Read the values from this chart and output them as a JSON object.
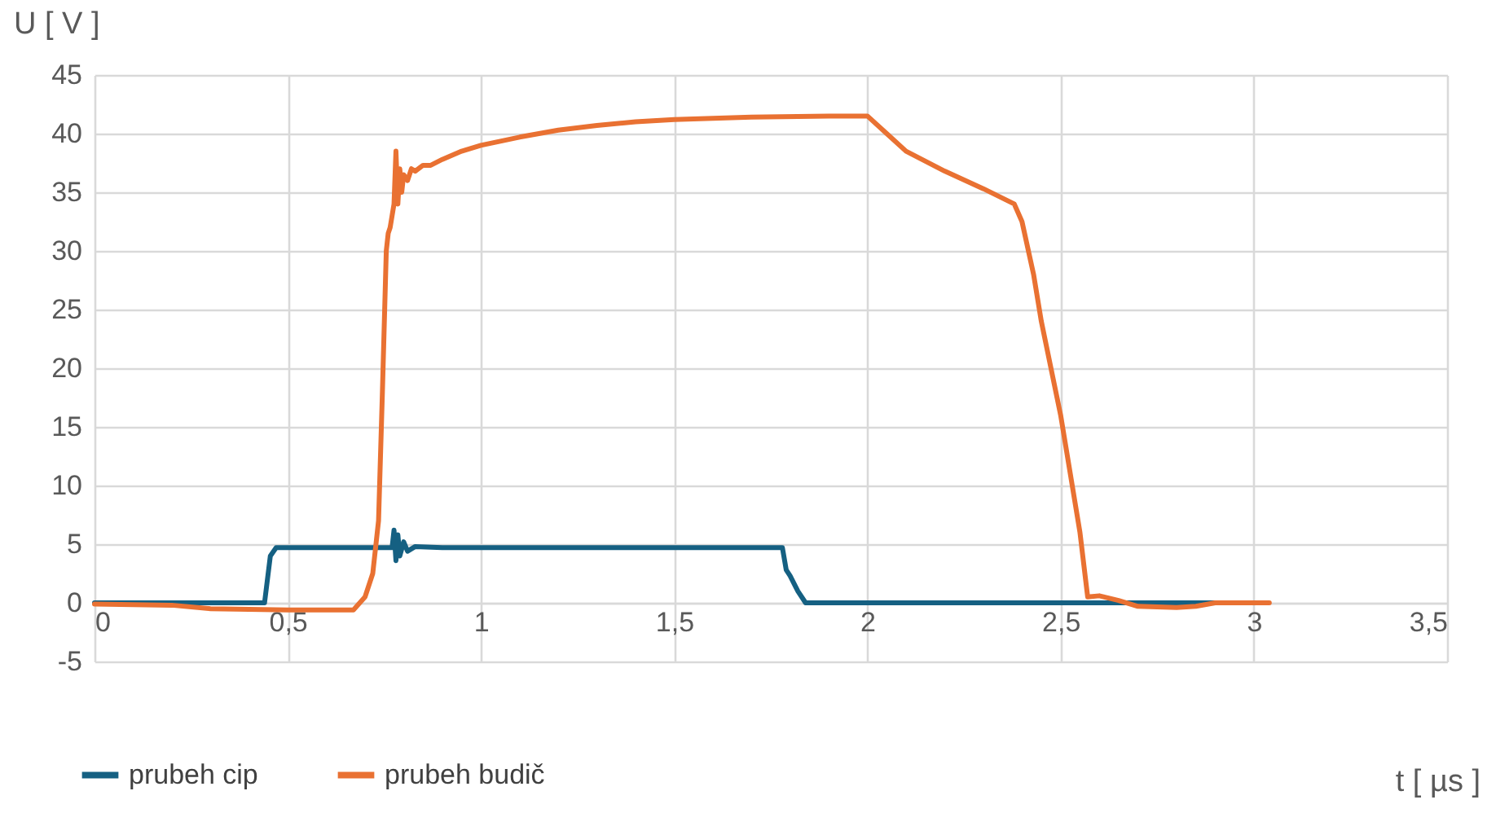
{
  "chart_data": {
    "type": "line",
    "xlabel": "t [ µs ]",
    "ylabel": "U [ V ]",
    "xlim": [
      0,
      3.5
    ],
    "ylim": [
      -5,
      45
    ],
    "xticks": [
      0,
      {
        "value": 0.5,
        "label": "0,5"
      },
      1,
      {
        "value": 1.5,
        "label": "1,5"
      },
      2,
      {
        "value": 2.5,
        "label": "2,5"
      },
      3,
      {
        "value": 3.5,
        "label": "3,5"
      }
    ],
    "yticks": [
      -5,
      0,
      5,
      10,
      15,
      20,
      25,
      30,
      35,
      40,
      45
    ],
    "grid": true,
    "legend": "bottom left",
    "line_style": "solid",
    "marker": "none",
    "series": [
      {
        "name": "prubeh cip",
        "color": "#156082",
        "x": [
          0,
          0.2,
          0.44,
          0.455,
          0.47,
          0.6,
          0.75,
          0.77,
          0.775,
          0.78,
          0.785,
          0.79,
          0.8,
          0.81,
          0.83,
          0.9,
          1.2,
          1.5,
          1.78,
          1.79,
          1.8,
          1.82,
          1.84,
          2.2,
          2.6,
          3.03
        ],
        "values": [
          0,
          0,
          0,
          4,
          4.7,
          4.7,
          4.7,
          4.7,
          6.2,
          3.6,
          5.8,
          4,
          5.2,
          4.4,
          4.8,
          4.7,
          4.7,
          4.7,
          4.7,
          2.8,
          2.3,
          1,
          0,
          0,
          0,
          0
        ]
      },
      {
        "name": "prubeh budič",
        "color": "#e97132",
        "x": [
          0,
          0.2,
          0.3,
          0.5,
          0.67,
          0.7,
          0.72,
          0.735,
          0.745,
          0.755,
          0.76,
          0.765,
          0.775,
          0.78,
          0.785,
          0.79,
          0.795,
          0.8,
          0.81,
          0.82,
          0.83,
          0.85,
          0.87,
          0.9,
          0.95,
          1,
          1.1,
          1.2,
          1.3,
          1.4,
          1.5,
          1.7,
          1.9,
          2,
          2.05,
          2.1,
          2.2,
          2.3,
          2.38,
          2.4,
          2.43,
          2.45,
          2.5,
          2.55,
          2.57,
          2.6,
          2.65,
          2.7,
          2.8,
          2.85,
          2.9,
          3.04
        ],
        "values": [
          -0.1,
          -0.2,
          -0.5,
          -0.6,
          -0.6,
          0.5,
          2.5,
          7,
          18,
          30,
          31.5,
          32,
          34,
          38.5,
          34,
          37,
          35,
          36.5,
          36,
          37,
          36.8,
          37.3,
          37.3,
          37.8,
          38.5,
          39,
          39.7,
          40.3,
          40.7,
          41,
          41.2,
          41.4,
          41.5,
          41.5,
          40,
          38.5,
          36.8,
          35.3,
          34,
          32.5,
          28,
          24,
          16,
          6,
          0.5,
          0.6,
          0.2,
          -0.3,
          -0.4,
          -0.3,
          0,
          0
        ]
      }
    ]
  }
}
